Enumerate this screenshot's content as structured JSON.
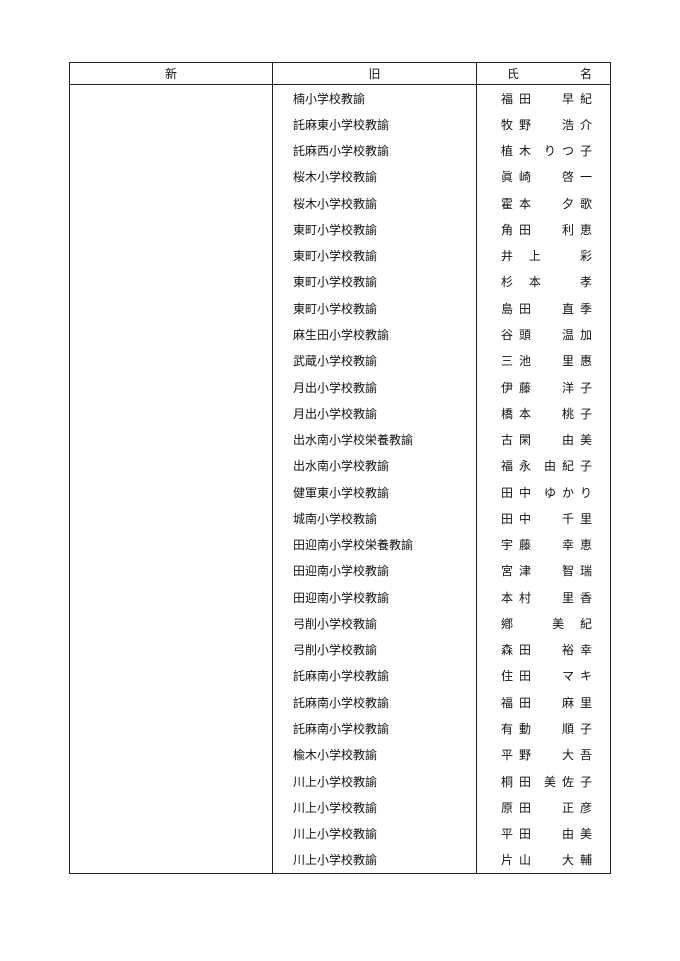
{
  "headers": {
    "new": "新",
    "old": "旧",
    "name_family": "氏",
    "name_given": "名"
  },
  "rows": [
    {
      "new": "",
      "old": "楠小学校教諭",
      "family": "福田",
      "given": "早紀"
    },
    {
      "new": "",
      "old": "託麻東小学校教諭",
      "family": "牧野",
      "given": "浩介"
    },
    {
      "new": "",
      "old": "託麻西小学校教諭",
      "family": "植木",
      "given": "りつ子"
    },
    {
      "new": "",
      "old": "桜木小学校教諭",
      "family": "眞崎",
      "given": "啓一"
    },
    {
      "new": "",
      "old": "桜木小学校教諭",
      "family": "霍本",
      "given": "夕歌"
    },
    {
      "new": "",
      "old": "東町小学校教諭",
      "family": "角田",
      "given": "利恵"
    },
    {
      "new": "",
      "old": "東町小学校教諭",
      "family": "井 上",
      "given": "彩"
    },
    {
      "new": "",
      "old": "東町小学校教諭",
      "family": "杉 本",
      "given": "孝"
    },
    {
      "new": "",
      "old": "東町小学校教諭",
      "family": "島田",
      "given": "直季"
    },
    {
      "new": "",
      "old": "麻生田小学校教諭",
      "family": "谷頭",
      "given": "温加"
    },
    {
      "new": "",
      "old": "武蔵小学校教諭",
      "family": "三池",
      "given": "里惠"
    },
    {
      "new": "",
      "old": "月出小学校教諭",
      "family": "伊藤",
      "given": "洋子"
    },
    {
      "new": "",
      "old": "月出小学校教諭",
      "family": "橋本",
      "given": "桃子"
    },
    {
      "new": "",
      "old": "出水南小学校栄養教諭",
      "family": "古閑",
      "given": "由美"
    },
    {
      "new": "",
      "old": "出水南小学校教諭",
      "family": "福永",
      "given": "由紀子"
    },
    {
      "new": "",
      "old": "健軍東小学校教諭",
      "family": "田中",
      "given": "ゆかり"
    },
    {
      "new": "",
      "old": "城南小学校教諭",
      "family": "田中",
      "given": "千里"
    },
    {
      "new": "",
      "old": "田迎南小学校栄養教諭",
      "family": "宇藤",
      "given": "幸恵"
    },
    {
      "new": "",
      "old": "田迎南小学校教諭",
      "family": "宮津",
      "given": "智瑞"
    },
    {
      "new": "",
      "old": "田迎南小学校教諭",
      "family": "本村",
      "given": "里香"
    },
    {
      "new": "",
      "old": "弓削小学校教諭",
      "family": "鄕",
      "given": "美 紀"
    },
    {
      "new": "",
      "old": "弓削小学校教諭",
      "family": "森田",
      "given": "裕幸"
    },
    {
      "new": "",
      "old": "託麻南小学校教諭",
      "family": "住田",
      "given": "マキ"
    },
    {
      "new": "",
      "old": "託麻南小学校教諭",
      "family": "福田",
      "given": "麻里"
    },
    {
      "new": "",
      "old": "託麻南小学校教諭",
      "family": "有動",
      "given": "順子"
    },
    {
      "new": "",
      "old": "楡木小学校教諭",
      "family": "平野",
      "given": "大吾"
    },
    {
      "new": "",
      "old": "川上小学校教諭",
      "family": "桐田",
      "given": "美佐子"
    },
    {
      "new": "",
      "old": "川上小学校教諭",
      "family": "原田",
      "given": "正彦"
    },
    {
      "new": "",
      "old": "川上小学校教諭",
      "family": "平田",
      "given": "由美"
    },
    {
      "new": "",
      "old": "川上小学校教諭",
      "family": "片山",
      "given": "大輔"
    }
  ]
}
